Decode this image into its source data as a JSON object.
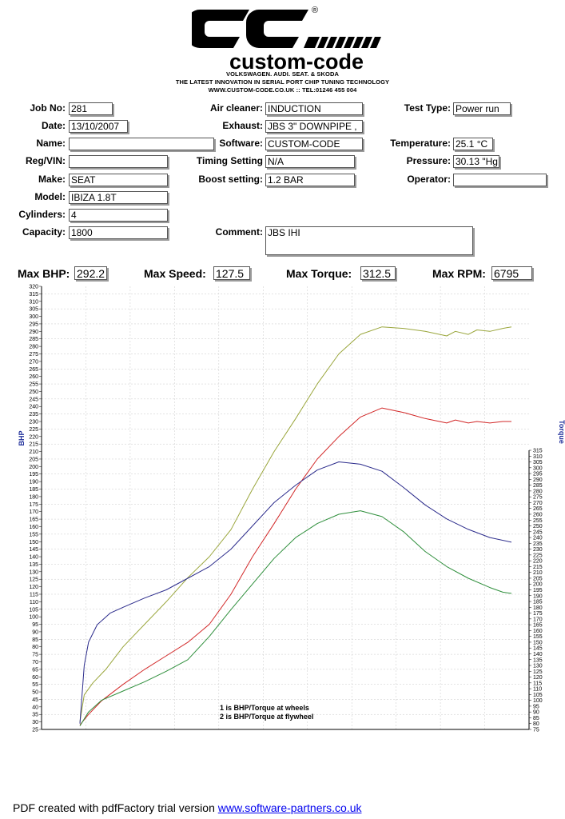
{
  "brand": {
    "lettering": "CC",
    "name": "custom-code",
    "registered": "®",
    "line1": "VOLKSWAGEN. AUDI. SEAT. & SKODA",
    "line2": "THE LATEST INNOVATION IN SERIAL PORT CHIP TUNING TECHNOLOGY",
    "line3": "WWW.CUSTOM-CODE.CO.UK :: TEL:01246 455 004"
  },
  "form": {
    "job_no": {
      "label": "Job No:",
      "value": "281"
    },
    "date": {
      "label": "Date:",
      "value": "13/10/2007"
    },
    "name": {
      "label": "Name:",
      "value": ""
    },
    "reg_vin": {
      "label": "Reg/VIN:",
      "value": ""
    },
    "make": {
      "label": "Make:",
      "value": "SEAT"
    },
    "model": {
      "label": "Model:",
      "value": "IBIZA 1.8T"
    },
    "cylinders": {
      "label": "Cylinders:",
      "value": "4"
    },
    "capacity": {
      "label": "Capacity:",
      "value": "1800"
    },
    "air_cleaner": {
      "label": "Air cleaner:",
      "value": "INDUCTION"
    },
    "exhaust": {
      "label": "Exhaust:",
      "value": "JBS 3\" DOWNPIPE ,"
    },
    "software": {
      "label": "Software:",
      "value": "CUSTOM-CODE"
    },
    "timing": {
      "label": "Timing Setting",
      "value": "N/A"
    },
    "boost": {
      "label": "Boost setting:",
      "value": "1.2 BAR"
    },
    "comment": {
      "label": "Comment:",
      "value": "JBS IHI"
    },
    "test_type": {
      "label": "Test Type:",
      "value": "Power run"
    },
    "temperature": {
      "label": "Temperature:",
      "value": "25.1 °C"
    },
    "pressure": {
      "label": "Pressure:",
      "value": "30.13 \"Hg"
    },
    "operator": {
      "label": "Operator:",
      "value": ""
    }
  },
  "summary": {
    "max_bhp": {
      "label": "Max BHP:",
      "value": "292.2"
    },
    "max_speed": {
      "label": "Max Speed:",
      "value": "127.5"
    },
    "max_torque": {
      "label": "Max Torque:",
      "value": "312.5"
    },
    "max_rpm": {
      "label": "Max RPM:",
      "value": "6795"
    }
  },
  "chart_data": {
    "type": "line",
    "ylabel": "BHP",
    "y2label": "Torque",
    "ylim": [
      25,
      320
    ],
    "y2lim": [
      75,
      315
    ],
    "y_ticks_step": 5,
    "y2_ticks_step": 5,
    "xlim": [
      0,
      1
    ],
    "grid": true,
    "annotations": [
      "1 is BHP/Torque at wheels",
      "2 is BHP/Torque at flywheel"
    ],
    "series": [
      {
        "axis": "left",
        "color": "#9aa63c",
        "x": [
          0.0,
          0.01,
          0.03,
          0.06,
          0.1,
          0.15,
          0.2,
          0.25,
          0.3,
          0.35,
          0.4,
          0.45,
          0.5,
          0.55,
          0.6,
          0.65,
          0.7,
          0.75,
          0.8,
          0.85,
          0.87,
          0.9,
          0.92,
          0.95,
          0.98,
          1.0
        ],
        "y": [
          30,
          48,
          56,
          65,
          80,
          95,
          110,
          126,
          140,
          158,
          185,
          210,
          232,
          255,
          275,
          288,
          293,
          292,
          290,
          287,
          290,
          288,
          291,
          290,
          292,
          293
        ]
      },
      {
        "axis": "left",
        "color": "#d22828",
        "x": [
          0.0,
          0.02,
          0.05,
          0.1,
          0.15,
          0.2,
          0.25,
          0.3,
          0.35,
          0.4,
          0.45,
          0.5,
          0.55,
          0.6,
          0.65,
          0.7,
          0.75,
          0.8,
          0.85,
          0.87,
          0.9,
          0.92,
          0.95,
          0.98,
          1.0
        ],
        "y": [
          28,
          35,
          44,
          55,
          65,
          74,
          83,
          95,
          115,
          140,
          162,
          185,
          205,
          220,
          233,
          239,
          236,
          232,
          229,
          231,
          229,
          230,
          229,
          230,
          230
        ]
      },
      {
        "axis": "right",
        "color": "#2c2c8c",
        "x": [
          0.0,
          0.01,
          0.02,
          0.04,
          0.07,
          0.1,
          0.15,
          0.2,
          0.25,
          0.3,
          0.35,
          0.4,
          0.45,
          0.5,
          0.55,
          0.6,
          0.65,
          0.7,
          0.75,
          0.8,
          0.85,
          0.9,
          0.95,
          1.0
        ],
        "y": [
          80,
          130,
          150,
          165,
          175,
          180,
          188,
          195,
          205,
          215,
          230,
          250,
          270,
          285,
          298,
          305,
          303,
          297,
          283,
          268,
          256,
          247,
          240,
          236
        ]
      },
      {
        "axis": "right",
        "color": "#2f8f3c",
        "x": [
          0.0,
          0.02,
          0.05,
          0.1,
          0.15,
          0.2,
          0.25,
          0.3,
          0.35,
          0.4,
          0.45,
          0.5,
          0.55,
          0.6,
          0.65,
          0.7,
          0.75,
          0.8,
          0.85,
          0.9,
          0.95,
          0.98,
          1.0
        ],
        "y": [
          78,
          90,
          100,
          108,
          116,
          125,
          135,
          155,
          178,
          200,
          222,
          240,
          252,
          260,
          263,
          258,
          245,
          228,
          215,
          205,
          197,
          193,
          192
        ]
      }
    ]
  },
  "footer": {
    "text": "PDF created with pdfFactory trial version ",
    "link": "www.software-partners.co.uk"
  }
}
